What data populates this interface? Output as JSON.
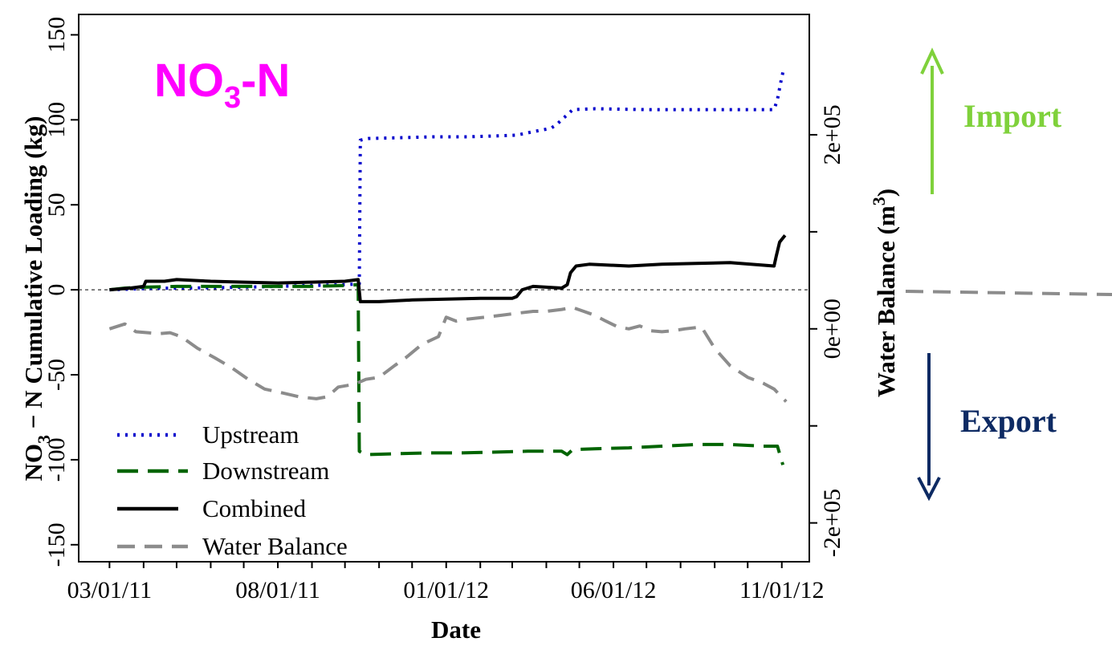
{
  "chart_data": {
    "type": "line",
    "annotation_title": {
      "main": "NO",
      "sub": "3",
      "rest": "-N",
      "color": "#ff00ff"
    },
    "xlabel": "Date",
    "ylabel_left": {
      "pre": "NO",
      "sub": "3",
      "post": " − N Cumulative Loading (kg)"
    },
    "ylabel_right": {
      "pre": "Water Balance (m",
      "sup": "3",
      "post": ")"
    },
    "x_ticks": [
      "03/01/11",
      "08/01/11",
      "01/01/12",
      "06/01/12",
      "11/01/12"
    ],
    "x_range": [
      "2011-02-01",
      "2012-11-26"
    ],
    "ylim_left": [
      -160,
      162
    ],
    "y_ticks_left": [
      -150,
      -100,
      -50,
      0,
      50,
      100,
      150
    ],
    "ylim_right": [
      -240000,
      324000
    ],
    "y_ticks_right": [
      {
        "value": -200000,
        "label": "-2e+05"
      },
      {
        "value": -100000,
        "label": ""
      },
      {
        "value": 0,
        "label": "0e+00"
      },
      {
        "value": 100000,
        "label": ""
      },
      {
        "value": 200000,
        "label": "2e+05"
      }
    ],
    "zero_reference": true,
    "legend_position": "bottom-left",
    "series": [
      {
        "name": "Upstream",
        "axis": "left",
        "color": "#0000cc",
        "dash": "3,7",
        "width": 4,
        "points": [
          [
            "2011-03-01",
            0
          ],
          [
            "2011-03-20",
            0.4
          ],
          [
            "2011-04-05",
            0.8
          ],
          [
            "2011-05-01",
            1
          ],
          [
            "2011-06-01",
            1.2
          ],
          [
            "2011-07-01",
            1.5
          ],
          [
            "2011-08-01",
            2
          ],
          [
            "2011-09-01",
            2.5
          ],
          [
            "2011-10-01",
            3
          ],
          [
            "2011-10-14",
            3.5
          ],
          [
            "2011-10-15",
            88
          ],
          [
            "2011-10-22",
            89
          ],
          [
            "2011-11-20",
            89.5
          ],
          [
            "2011-12-20",
            90
          ],
          [
            "2012-01-20",
            90
          ],
          [
            "2012-02-15",
            90.5
          ],
          [
            "2012-03-05",
            91
          ],
          [
            "2012-03-20",
            93
          ],
          [
            "2012-04-05",
            95
          ],
          [
            "2012-04-10",
            97
          ],
          [
            "2012-04-15",
            100
          ],
          [
            "2012-04-20",
            103
          ],
          [
            "2012-04-25",
            106
          ],
          [
            "2012-05-15",
            106.5
          ],
          [
            "2012-07-01",
            106
          ],
          [
            "2012-09-01",
            106
          ],
          [
            "2012-10-25",
            106
          ],
          [
            "2012-10-28",
            112
          ],
          [
            "2012-10-31",
            122
          ],
          [
            "2012-11-03",
            131
          ]
        ]
      },
      {
        "name": "Downstream",
        "axis": "left",
        "color": "#006400",
        "dash": "26,12",
        "width": 4,
        "points": [
          [
            "2011-03-01",
            0
          ],
          [
            "2011-03-15",
            1
          ],
          [
            "2011-04-01",
            1.5
          ],
          [
            "2011-05-01",
            2
          ],
          [
            "2011-06-01",
            2
          ],
          [
            "2011-07-01",
            2
          ],
          [
            "2011-08-01",
            2
          ],
          [
            "2011-09-01",
            2
          ],
          [
            "2011-10-01",
            2.5
          ],
          [
            "2011-10-13",
            3
          ],
          [
            "2011-10-14",
            -95
          ],
          [
            "2011-10-20",
            -97
          ],
          [
            "2011-11-15",
            -96.5
          ],
          [
            "2011-12-15",
            -96
          ],
          [
            "2012-01-15",
            -96
          ],
          [
            "2012-02-15",
            -95.5
          ],
          [
            "2012-03-15",
            -95
          ],
          [
            "2012-04-15",
            -95
          ],
          [
            "2012-04-20",
            -97
          ],
          [
            "2012-04-25",
            -94
          ],
          [
            "2012-05-15",
            -93.5
          ],
          [
            "2012-06-15",
            -93
          ],
          [
            "2012-07-15",
            -92
          ],
          [
            "2012-08-15",
            -91
          ],
          [
            "2012-09-15",
            -91
          ],
          [
            "2012-10-15",
            -92
          ],
          [
            "2012-10-28",
            -92
          ],
          [
            "2012-11-02",
            -103
          ]
        ]
      },
      {
        "name": "Combined",
        "axis": "left",
        "color": "#000000",
        "dash": "",
        "width": 4,
        "points": [
          [
            "2011-03-01",
            0
          ],
          [
            "2011-03-20",
            1
          ],
          [
            "2011-04-01",
            2
          ],
          [
            "2011-04-03",
            5
          ],
          [
            "2011-04-20",
            5
          ],
          [
            "2011-05-01",
            6
          ],
          [
            "2011-06-01",
            5
          ],
          [
            "2011-07-01",
            4.5
          ],
          [
            "2011-08-01",
            4
          ],
          [
            "2011-09-01",
            4.5
          ],
          [
            "2011-10-01",
            5
          ],
          [
            "2011-10-13",
            6
          ],
          [
            "2011-10-15",
            -7
          ],
          [
            "2011-11-01",
            -7
          ],
          [
            "2011-12-01",
            -6
          ],
          [
            "2012-01-01",
            -5.5
          ],
          [
            "2012-02-01",
            -5
          ],
          [
            "2012-03-01",
            -5
          ],
          [
            "2012-03-05",
            -4
          ],
          [
            "2012-03-10",
            0
          ],
          [
            "2012-03-20",
            2
          ],
          [
            "2012-04-15",
            1
          ],
          [
            "2012-04-20",
            3
          ],
          [
            "2012-04-23",
            10
          ],
          [
            "2012-04-28",
            14
          ],
          [
            "2012-05-10",
            15
          ],
          [
            "2012-06-15",
            14
          ],
          [
            "2012-07-15",
            15
          ],
          [
            "2012-08-15",
            15.5
          ],
          [
            "2012-09-15",
            16
          ],
          [
            "2012-10-25",
            14
          ],
          [
            "2012-10-27",
            20
          ],
          [
            "2012-10-30",
            28
          ],
          [
            "2012-11-04",
            32
          ]
        ]
      },
      {
        "name": "Water Balance",
        "axis": "right",
        "color": "#8c8c8c",
        "dash": "22,12",
        "width": 4,
        "points": [
          [
            "2011-03-01",
            0
          ],
          [
            "2011-03-15",
            5000
          ],
          [
            "2011-03-25",
            -3000
          ],
          [
            "2011-04-05",
            -4000
          ],
          [
            "2011-04-15",
            -5000
          ],
          [
            "2011-04-25",
            -4000
          ],
          [
            "2011-05-05",
            -8000
          ],
          [
            "2011-05-20",
            -20000
          ],
          [
            "2011-06-05",
            -30000
          ],
          [
            "2011-06-20",
            -40000
          ],
          [
            "2011-07-05",
            -52000
          ],
          [
            "2011-07-20",
            -62000
          ],
          [
            "2011-08-05",
            -66000
          ],
          [
            "2011-08-20",
            -70000
          ],
          [
            "2011-09-05",
            -72000
          ],
          [
            "2011-09-15",
            -70000
          ],
          [
            "2011-09-25",
            -60000
          ],
          [
            "2011-10-05",
            -58000
          ],
          [
            "2011-10-12",
            -56000
          ],
          [
            "2011-10-20",
            -52000
          ],
          [
            "2011-11-01",
            -50000
          ],
          [
            "2011-11-15",
            -38000
          ],
          [
            "2011-11-25",
            -30000
          ],
          [
            "2011-12-10",
            -16000
          ],
          [
            "2011-12-25",
            -8000
          ],
          [
            "2012-01-01",
            12000
          ],
          [
            "2012-01-10",
            8000
          ],
          [
            "2012-01-20",
            10000
          ],
          [
            "2012-02-05",
            12000
          ],
          [
            "2012-02-20",
            14000
          ],
          [
            "2012-03-05",
            16000
          ],
          [
            "2012-03-20",
            18000
          ],
          [
            "2012-04-01",
            18000
          ],
          [
            "2012-04-15",
            20000
          ],
          [
            "2012-04-25",
            22000
          ],
          [
            "2012-05-05",
            18000
          ],
          [
            "2012-05-15",
            14000
          ],
          [
            "2012-05-25",
            8000
          ],
          [
            "2012-06-05",
            2000
          ],
          [
            "2012-06-15",
            0
          ],
          [
            "2012-06-25",
            3000
          ],
          [
            "2012-07-05",
            -2000
          ],
          [
            "2012-07-15",
            -3000
          ],
          [
            "2012-07-25",
            -2000
          ],
          [
            "2012-08-05",
            0
          ],
          [
            "2012-08-20",
            2000
          ],
          [
            "2012-09-01",
            -20000
          ],
          [
            "2012-09-15",
            -38000
          ],
          [
            "2012-10-01",
            -50000
          ],
          [
            "2012-10-15",
            -56000
          ],
          [
            "2012-10-25",
            -62000
          ],
          [
            "2012-11-05",
            -75000
          ]
        ]
      }
    ],
    "side_annotations": {
      "import": {
        "label": "Import",
        "color": "#7fd13b"
      },
      "export": {
        "label": "Export",
        "color": "#0d2a63"
      },
      "reference_line_color": "#8c8c8c"
    }
  }
}
